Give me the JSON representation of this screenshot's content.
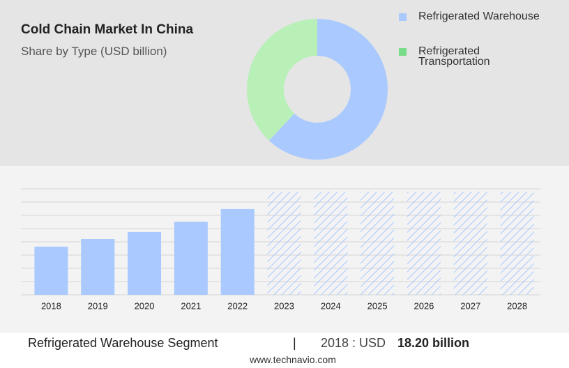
{
  "chart_data": [
    {
      "type": "pie",
      "title": "Cold Chain Market In China",
      "subtitle": "Share by Type (USD billion)",
      "categories": [
        "Refrigerated Warehouse",
        "Refrigerated Transportation"
      ],
      "values": [
        62,
        38
      ],
      "colors": [
        "#a9c9ff",
        "#b8f0b8"
      ],
      "legend_colors": [
        "#a9c9ff",
        "#77dd88"
      ],
      "legend": "right"
    },
    {
      "type": "bar",
      "categories": [
        "2018",
        "2019",
        "2020",
        "2021",
        "2022",
        "2023",
        "2024",
        "2025",
        "2026",
        "2027",
        "2028"
      ],
      "values": [
        18.2,
        21.05,
        23.7,
        27.6,
        32.4,
        null,
        null,
        null,
        null,
        null,
        null
      ],
      "color": "#a9c9ff",
      "ylim": [
        0,
        40
      ],
      "yticks": [
        0,
        5,
        10,
        15,
        20,
        25,
        30,
        35,
        40
      ],
      "grid": true
    }
  ],
  "footer": {
    "segment": "Refrigerated Warehouse Segment",
    "separator": "|",
    "year_label": "2018 : USD",
    "value_label": "18.20 billion",
    "source": "www.technavio.com"
  }
}
